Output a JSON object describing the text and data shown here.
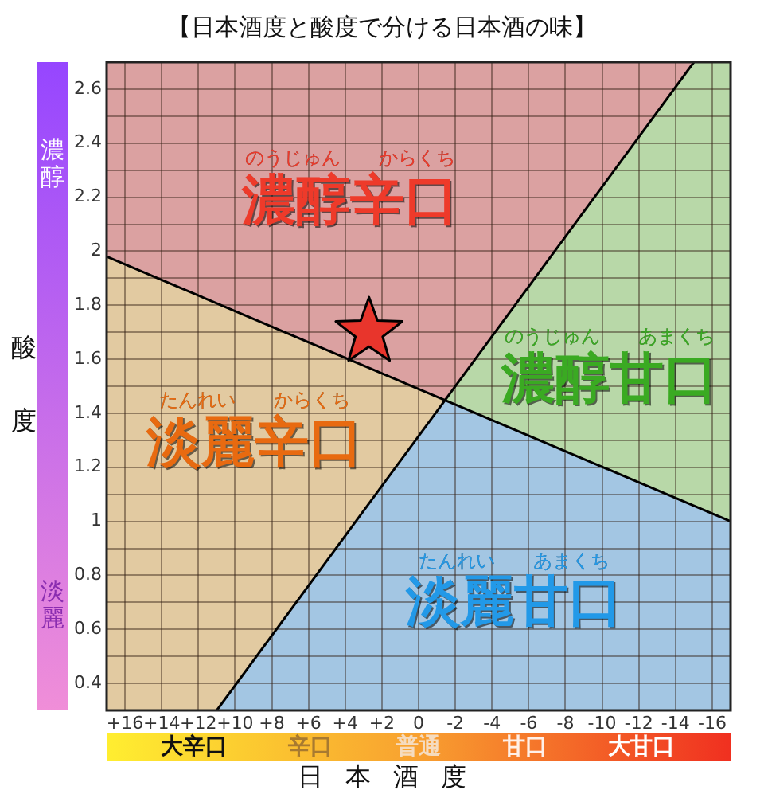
{
  "chart_data": {
    "type": "line",
    "title": "【日本酒度と酸度で分ける日本酒の味】",
    "xlabel": "日本酒度",
    "ylabel": "酸度",
    "series": [
      {
        "x": [
          17,
          -17
        ],
        "values": [
          1.98,
          1.0
        ],
        "color": "#000000"
      },
      {
        "x": [
          11,
          -15
        ],
        "values": [
          0.3,
          2.7
        ],
        "color": "#000000"
      },
      {
        "type": "scatter",
        "x": [
          2.7
        ],
        "values": [
          1.7
        ],
        "color": "#e8352c",
        "marker": "star"
      }
    ],
    "xlim": [
      17,
      -17
    ],
    "xticks": [
      {
        "value": 16,
        "label": "+16"
      },
      {
        "value": 14,
        "label": "+14"
      },
      {
        "value": 12,
        "label": "+12"
      },
      {
        "value": 10,
        "label": "+10"
      },
      {
        "value": 8,
        "label": "+8"
      },
      {
        "value": 6,
        "label": "+6"
      },
      {
        "value": 4,
        "label": "+4"
      },
      {
        "value": 2,
        "label": "+2"
      },
      0,
      -2,
      -4,
      -6,
      -8,
      -10,
      -12,
      -14,
      -16
    ],
    "ylim": [
      0.3,
      2.7
    ],
    "yticks": [
      0.4,
      {
        "value": 0.5,
        "label": null
      },
      0.6,
      {
        "value": 0.7,
        "label": null
      },
      0.8,
      {
        "value": 0.9,
        "label": null
      },
      1.0,
      {
        "value": 1.1,
        "label": null
      },
      1.2,
      {
        "value": 1.3,
        "label": null
      },
      1.4,
      {
        "value": 1.5,
        "label": null
      },
      1.6,
      {
        "value": 1.7,
        "label": null
      },
      1.8,
      {
        "value": 1.9,
        "label": null
      },
      2.0,
      {
        "value": 2.1,
        "label": null
      },
      2.2,
      {
        "value": 2.3,
        "label": null
      },
      2.4,
      {
        "value": 2.5,
        "label": null
      },
      2.6
    ],
    "grid": true,
    "annotations": [
      "濃醇辛口",
      "のうじゅん　　からくち",
      "濃醇甘口",
      "のうじゅん　　あまくち",
      "淡麗辛口",
      "たんれい　　からくち",
      "淡麗甘口",
      "たんれい　　あまくち",
      "大辛口",
      "辛口",
      "普通",
      "甘口",
      "大甘口",
      "濃醇",
      "淡麗"
    ]
  }
}
